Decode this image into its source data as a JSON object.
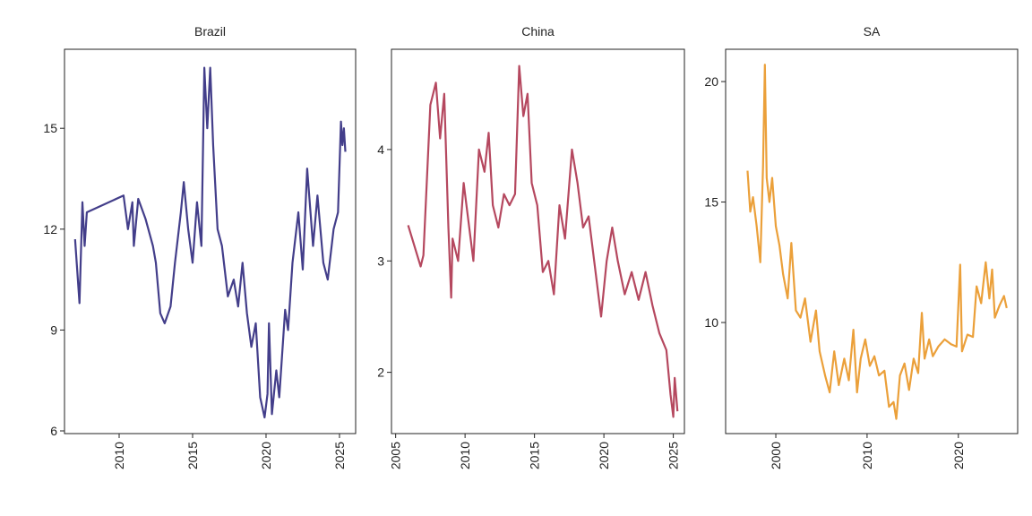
{
  "chart_data": [
    {
      "type": "line",
      "title": "Brazil",
      "color": "#433e8a",
      "x": [
        2007.0,
        2007.3,
        2007.5,
        2007.65,
        2007.8,
        2010.3,
        2010.6,
        2010.9,
        2011.0,
        2011.3,
        2011.8,
        2012.3,
        2012.5,
        2012.8,
        2013.1,
        2013.5,
        2013.8,
        2014.2,
        2014.4,
        2014.7,
        2015.0,
        2015.3,
        2015.6,
        2015.8,
        2016.0,
        2016.2,
        2016.4,
        2016.7,
        2017.0,
        2017.4,
        2017.8,
        2018.1,
        2018.4,
        2018.7,
        2019.0,
        2019.3,
        2019.6,
        2019.9,
        2020.1,
        2020.2,
        2020.4,
        2020.7,
        2020.9,
        2021.3,
        2021.5,
        2021.8,
        2022.2,
        2022.5,
        2022.8,
        2023.2,
        2023.5,
        2023.9,
        2024.2,
        2024.6,
        2024.9,
        2025.1,
        2025.2,
        2025.3,
        2025.4
      ],
      "values": [
        11.7,
        9.8,
        12.8,
        11.5,
        12.5,
        13.0,
        12.0,
        12.8,
        11.5,
        12.9,
        12.3,
        11.5,
        11.0,
        9.5,
        9.2,
        9.7,
        11.0,
        12.5,
        13.4,
        12.0,
        11.0,
        12.8,
        11.5,
        16.8,
        15.0,
        16.8,
        14.5,
        12.0,
        11.5,
        10.0,
        10.5,
        9.7,
        11.0,
        9.5,
        8.5,
        9.2,
        7.0,
        6.4,
        7.1,
        9.2,
        6.5,
        7.8,
        7.0,
        9.6,
        9.0,
        11.0,
        12.5,
        10.8,
        13.8,
        11.5,
        13.0,
        11.0,
        10.5,
        12.0,
        12.5,
        15.2,
        14.5,
        15.0,
        14.3
      ],
      "xlim": [
        2006.28,
        2026.1
      ],
      "xticks": [
        2010,
        2015,
        2020,
        2025
      ],
      "ylim": [
        5.92,
        17.35
      ],
      "yticks": [
        6,
        9,
        12,
        15
      ]
    },
    {
      "type": "line",
      "title": "China",
      "color": "#b5485f",
      "x": [
        2005.9,
        2006.8,
        2007.0,
        2007.5,
        2007.9,
        2008.2,
        2008.5,
        2008.8,
        2009.0,
        2009.1,
        2009.5,
        2009.9,
        2010.3,
        2010.6,
        2011.0,
        2011.4,
        2011.7,
        2012.0,
        2012.4,
        2012.8,
        2013.2,
        2013.6,
        2013.9,
        2014.2,
        2014.5,
        2014.8,
        2015.2,
        2015.6,
        2016.0,
        2016.4,
        2016.8,
        2017.2,
        2017.7,
        2018.1,
        2018.5,
        2018.9,
        2019.3,
        2019.8,
        2020.2,
        2020.6,
        2021.0,
        2021.5,
        2022.0,
        2022.5,
        2023.0,
        2023.5,
        2024.0,
        2024.5,
        2024.8,
        2025.0,
        2025.1,
        2025.3
      ],
      "values": [
        3.32,
        2.95,
        3.05,
        4.4,
        4.6,
        4.1,
        4.5,
        3.3,
        2.67,
        3.2,
        3.0,
        3.7,
        3.3,
        3.0,
        4.0,
        3.8,
        4.15,
        3.5,
        3.3,
        3.6,
        3.5,
        3.6,
        4.75,
        4.3,
        4.5,
        3.7,
        3.5,
        2.9,
        3.0,
        2.7,
        3.5,
        3.2,
        4.0,
        3.7,
        3.3,
        3.4,
        3.0,
        2.5,
        3.0,
        3.3,
        3.0,
        2.7,
        2.9,
        2.65,
        2.9,
        2.6,
        2.35,
        2.2,
        1.8,
        1.6,
        1.95,
        1.65
      ],
      "xlim": [
        2004.7,
        2025.8
      ],
      "xticks": [
        2005,
        2010,
        2015,
        2020,
        2025
      ],
      "ylim": [
        1.45,
        4.9
      ],
      "yticks": [
        2,
        3,
        4
      ]
    },
    {
      "type": "line",
      "title": "SA",
      "color": "#eba03a",
      "x": [
        1996.9,
        1997.2,
        1997.5,
        1997.9,
        1998.3,
        1998.6,
        1998.8,
        1999.0,
        1999.3,
        1999.6,
        2000.0,
        2000.4,
        2000.8,
        2001.3,
        2001.7,
        2002.2,
        2002.7,
        2003.2,
        2003.8,
        2004.4,
        2004.8,
        2005.4,
        2005.9,
        2006.4,
        2006.9,
        2007.5,
        2008.0,
        2008.5,
        2008.9,
        2009.3,
        2009.8,
        2010.3,
        2010.8,
        2011.3,
        2011.9,
        2012.4,
        2012.9,
        2013.2,
        2013.6,
        2014.1,
        2014.6,
        2015.1,
        2015.6,
        2016.0,
        2016.3,
        2016.8,
        2017.2,
        2017.8,
        2018.5,
        2019.2,
        2019.8,
        2020.2,
        2020.4,
        2021.0,
        2021.6,
        2022.0,
        2022.5,
        2023.0,
        2023.4,
        2023.7,
        2024.0,
        2024.5,
        2025.0,
        2025.3
      ],
      "values": [
        16.3,
        14.6,
        15.2,
        14.0,
        12.5,
        16.5,
        20.7,
        16.0,
        15.0,
        16.0,
        14.0,
        13.2,
        12.0,
        11.0,
        13.3,
        10.5,
        10.2,
        11.0,
        9.2,
        10.5,
        8.8,
        7.8,
        7.1,
        8.8,
        7.4,
        8.5,
        7.6,
        9.7,
        7.1,
        8.5,
        9.3,
        8.2,
        8.6,
        7.8,
        8.0,
        6.5,
        6.7,
        6.0,
        7.8,
        8.3,
        7.2,
        8.5,
        7.9,
        10.4,
        8.5,
        9.3,
        8.6,
        9.0,
        9.3,
        9.1,
        9.0,
        12.4,
        8.8,
        9.5,
        9.4,
        11.5,
        10.8,
        12.5,
        11.0,
        12.2,
        10.2,
        10.7,
        11.1,
        10.6
      ],
      "xlim": [
        1994.5,
        2026.5
      ],
      "xticks": [
        2000,
        2010,
        2020
      ],
      "ylim": [
        5.39,
        21.34
      ],
      "yticks": [
        10,
        15,
        20
      ]
    }
  ]
}
